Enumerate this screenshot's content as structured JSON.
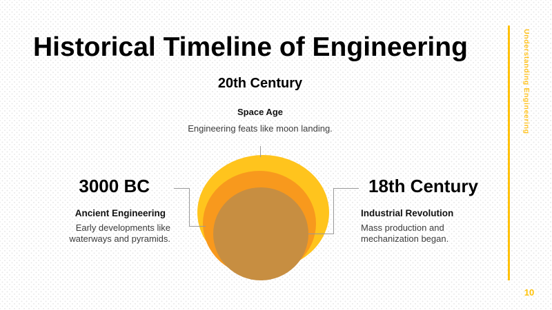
{
  "slide": {
    "title": "Historical Timeline of Engineering",
    "side_label": "Understanding Engineering",
    "page_number": "10"
  },
  "timeline": {
    "top": {
      "era": "20th Century",
      "title": "Space Age",
      "description": "Engineering feats like moon landing."
    },
    "left": {
      "era": "3000 BC",
      "title": "Ancient Engineering",
      "description": "Early developments like waterways and pyramids."
    },
    "right": {
      "era": "18th Century",
      "title": "Industrial Revolution",
      "description": "Mass production and mechanization began."
    }
  },
  "colors": {
    "accent": "#FFC000",
    "circle_outer": "#FFC41D",
    "circle_middle": "#F8991D",
    "circle_inner": "#C78E41",
    "connector": "#999999",
    "heading_text": "#000000",
    "body_text": "#3B3B3B"
  }
}
